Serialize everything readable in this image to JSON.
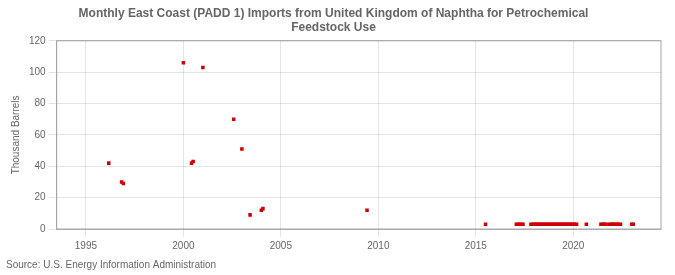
{
  "chart_data": {
    "type": "scatter",
    "title": "Monthly East Coast (PADD 1) Imports from United Kingdom of Naphtha for Petrochemical\nFeedstock Use",
    "ylabel": "Thousand Barrels",
    "annotations": [
      "Source: U.S. Energy Information Administration"
    ],
    "color": "#cc0000",
    "marker": "square",
    "grid": true,
    "xlim": [
      1993.5,
      2024.5
    ],
    "ylim": [
      0,
      120
    ],
    "xticks": [
      1995,
      2000,
      2005,
      2010,
      2015,
      2020
    ],
    "yticks": [
      0,
      20,
      40,
      60,
      80,
      100,
      120
    ],
    "x": [
      1996.17,
      1996.83,
      1996.92,
      2000.0,
      2000.42,
      2000.5,
      2001.0,
      2002.58,
      2003.0,
      2003.42,
      2004.0,
      2004.08,
      2009.42,
      2015.5,
      2017.08,
      2017.17,
      2017.25,
      2017.33,
      2017.42,
      2017.83,
      2017.92,
      2018.0,
      2018.08,
      2018.17,
      2018.25,
      2018.33,
      2018.42,
      2018.5,
      2018.58,
      2018.67,
      2018.75,
      2018.83,
      2018.92,
      2019.0,
      2019.08,
      2019.17,
      2019.25,
      2019.33,
      2019.42,
      2019.5,
      2019.58,
      2019.67,
      2019.75,
      2019.83,
      2019.92,
      2020.0,
      2020.08,
      2020.17,
      2020.67,
      2021.42,
      2021.5,
      2021.58,
      2021.67,
      2021.83,
      2021.92,
      2022.0,
      2022.08,
      2022.17,
      2022.25,
      2022.33,
      2022.42,
      2023.0,
      2023.08
    ],
    "values": [
      42,
      30,
      29,
      106,
      42,
      43,
      103,
      70,
      51,
      9,
      12,
      13,
      12,
      3,
      3,
      3,
      3,
      3,
      3,
      3,
      3,
      3,
      3,
      3,
      3,
      3,
      3,
      3,
      3,
      3,
      3,
      3,
      3,
      3,
      3,
      3,
      3,
      3,
      3,
      3,
      3,
      3,
      3,
      3,
      3,
      3,
      3,
      3,
      3,
      3,
      3,
      3,
      3,
      3,
      3,
      3,
      3,
      3,
      3,
      3,
      3,
      3,
      3
    ]
  }
}
